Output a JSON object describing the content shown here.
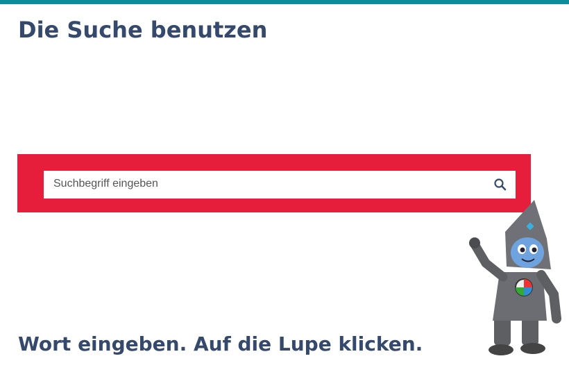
{
  "header": {
    "title": "Die Suche benutzen"
  },
  "search": {
    "placeholder": "Suchbegriff eingeben"
  },
  "instruction": "Wort eingeben. Auf die Lupe klicken."
}
